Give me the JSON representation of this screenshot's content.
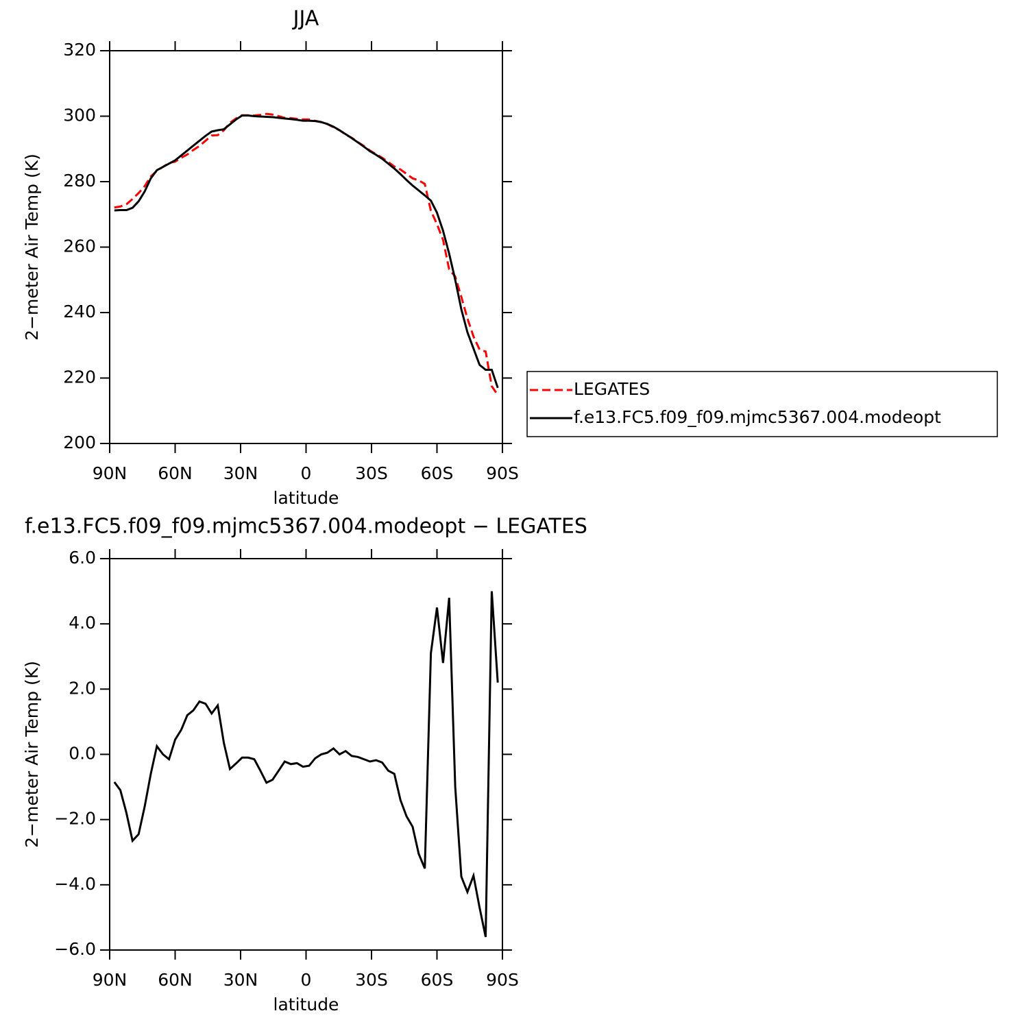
{
  "chart_data": [
    {
      "type": "line",
      "title": "JJA",
      "xlabel": "latitude",
      "ylabel": "2−meter Air Temp (K)",
      "x": [
        87.86,
        85.1,
        82.31,
        79.53,
        76.74,
        73.95,
        71.16,
        68.37,
        65.58,
        62.79,
        60.0,
        57.21,
        54.42,
        51.63,
        48.84,
        46.05,
        43.26,
        40.47,
        37.67,
        34.88,
        32.09,
        29.3,
        26.51,
        23.72,
        20.93,
        18.14,
        15.35,
        12.56,
        9.77,
        6.98,
        4.19,
        1.4,
        -1.4,
        -4.19,
        -6.98,
        -9.77,
        -12.56,
        -15.35,
        -18.14,
        -20.93,
        -23.72,
        -26.51,
        -29.3,
        -32.09,
        -34.88,
        -37.67,
        -40.47,
        -43.26,
        -46.05,
        -48.84,
        -51.63,
        -54.42,
        -57.21,
        -60.0,
        -62.79,
        -65.58,
        -68.37,
        -71.16,
        -73.95,
        -76.74,
        -79.53,
        -82.31,
        -85.1,
        -87.86
      ],
      "series": [
        {
          "name": "LEGATES",
          "color": "#ff0000",
          "line_style": "dashed",
          "values": [
            272.1,
            272.4,
            273.1,
            274.7,
            276.5,
            278.6,
            281.6,
            283.3,
            284.5,
            285.7,
            286.1,
            287.3,
            288.3,
            289.7,
            290.9,
            292.5,
            294.1,
            294.2,
            295.7,
            298.0,
            299.3,
            300.3,
            300.3,
            300.2,
            300.4,
            300.7,
            300.5,
            300.0,
            299.5,
            299.4,
            299.2,
            299.0,
            299.0,
            298.6,
            298.2,
            297.6,
            296.6,
            295.7,
            294.4,
            293.4,
            292.1,
            290.9,
            289.5,
            288.4,
            287.3,
            286.0,
            284.6,
            283.7,
            282.4,
            281.0,
            280.4,
            279.3,
            271.1,
            267.0,
            262.2,
            253.2,
            251.0,
            244.8,
            238.2,
            232.7,
            228.7,
            228.1,
            217.5,
            214.8
          ]
        },
        {
          "name": "f.e13.FC5.f09_f09.mjmc5367.004.modeopt",
          "color": "#000000",
          "line_style": "solid",
          "values": [
            271.2,
            271.3,
            271.3,
            272.0,
            274.0,
            277.0,
            281.0,
            283.5,
            284.5,
            285.5,
            286.5,
            288.0,
            289.5,
            291.0,
            292.5,
            294.0,
            295.3,
            295.7,
            296.0,
            297.5,
            299.0,
            300.2,
            300.2,
            300.0,
            299.9,
            299.8,
            299.7,
            299.5,
            299.3,
            299.1,
            298.9,
            298.6,
            298.6,
            298.5,
            298.2,
            297.6,
            296.8,
            295.7,
            294.5,
            293.3,
            292.0,
            290.7,
            289.3,
            288.2,
            287.0,
            285.5,
            284.0,
            282.3,
            280.5,
            278.8,
            277.3,
            275.8,
            274.2,
            270.5,
            265.0,
            258.0,
            250.0,
            241.0,
            234.0,
            229.0,
            224.0,
            222.5,
            222.5,
            217.0
          ]
        }
      ],
      "xlim": [
        90,
        -90
      ],
      "xticks": [
        {
          "value": 90,
          "label": "90N"
        },
        {
          "value": 60,
          "label": "60N"
        },
        {
          "value": 30,
          "label": "30N"
        },
        0,
        {
          "value": -30,
          "label": "30S"
        },
        {
          "value": -60,
          "label": "60S"
        },
        {
          "value": -90,
          "label": "90S"
        }
      ],
      "ylim": [
        200,
        320
      ],
      "yticks": [
        200,
        220,
        240,
        260,
        280,
        300,
        320
      ],
      "legend": "right"
    },
    {
      "type": "line",
      "title": "f.e13.FC5.f09_f09.mjmc5367.004.modeopt − LEGATES",
      "xlabel": "latitude",
      "ylabel": "2−meter Air Temp (K)",
      "x": [
        87.86,
        85.1,
        82.31,
        79.53,
        76.74,
        73.95,
        71.16,
        68.37,
        65.58,
        62.79,
        60.0,
        57.21,
        54.42,
        51.63,
        48.84,
        46.05,
        43.26,
        40.47,
        37.67,
        34.88,
        32.09,
        29.3,
        26.51,
        23.72,
        20.93,
        18.14,
        15.35,
        12.56,
        9.77,
        6.98,
        4.19,
        1.4,
        -1.4,
        -4.19,
        -6.98,
        -9.77,
        -12.56,
        -15.35,
        -18.14,
        -20.93,
        -23.72,
        -26.51,
        -29.3,
        -32.09,
        -34.88,
        -37.67,
        -40.47,
        -43.26,
        -46.05,
        -48.84,
        -51.63,
        -54.42,
        -57.21,
        -60.0,
        -62.79,
        -65.58,
        -68.37,
        -71.16,
        -73.95,
        -76.74,
        -79.53,
        -82.31,
        -85.1,
        -87.86
      ],
      "color": "#000000",
      "values": [
        -0.85,
        -1.1,
        -1.8,
        -2.65,
        -2.45,
        -1.6,
        -0.6,
        0.25,
        0.0,
        -0.15,
        0.45,
        0.75,
        1.2,
        1.35,
        1.62,
        1.55,
        1.25,
        1.5,
        0.35,
        -0.45,
        -0.28,
        -0.1,
        -0.1,
        -0.15,
        -0.5,
        -0.87,
        -0.78,
        -0.5,
        -0.22,
        -0.3,
        -0.27,
        -0.38,
        -0.35,
        -0.12,
        0.0,
        0.05,
        0.18,
        0.0,
        0.1,
        -0.05,
        -0.08,
        -0.15,
        -0.22,
        -0.18,
        -0.25,
        -0.5,
        -0.6,
        -1.4,
        -1.9,
        -2.22,
        -3.05,
        -3.5,
        3.1,
        4.5,
        2.8,
        4.8,
        -1.0,
        -3.75,
        -4.22,
        -3.72,
        -4.7,
        -5.6,
        5.0,
        2.2
      ],
      "xlim": [
        90,
        -90
      ],
      "xticks": [
        {
          "value": 90,
          "label": "90N"
        },
        {
          "value": 60,
          "label": "60N"
        },
        {
          "value": 30,
          "label": "30N"
        },
        0,
        {
          "value": -30,
          "label": "30S"
        },
        {
          "value": -60,
          "label": "60S"
        },
        {
          "value": -90,
          "label": "90S"
        }
      ],
      "ylim": [
        -6,
        6
      ],
      "yticks": [
        {
          "value": -6,
          "label": "−6.0"
        },
        {
          "value": -4,
          "label": "−4.0"
        },
        {
          "value": -2,
          "label": "−2.0"
        },
        {
          "value": 0,
          "label": "0.0"
        },
        {
          "value": 2,
          "label": "2.0"
        },
        {
          "value": 4,
          "label": "4.0"
        },
        {
          "value": 6,
          "label": "6.0"
        }
      ]
    }
  ]
}
